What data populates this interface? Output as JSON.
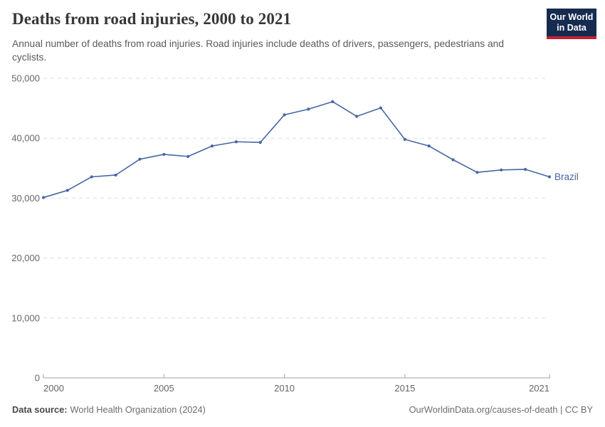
{
  "colors": {
    "brand_navy": "#172b50",
    "brand_red": "#c5212f",
    "series_blue": "#4666a4",
    "axis_text": "#666666",
    "grid": "#dedede",
    "axis_line": "#a3a3a3"
  },
  "logo": {
    "line1": "Our World",
    "line2": "in Data"
  },
  "chart_data": {
    "type": "line",
    "title": "Deaths from road injuries, 2000 to 2021",
    "subtitle": "Annual number of deaths from road injuries. Road injuries include deaths of drivers, passengers, pedestrians and cyclists.",
    "x": [
      2000,
      2001,
      2002,
      2003,
      2004,
      2005,
      2006,
      2007,
      2008,
      2009,
      2010,
      2011,
      2012,
      2013,
      2014,
      2015,
      2016,
      2017,
      2018,
      2019,
      2020,
      2021
    ],
    "series": [
      {
        "name": "Brazil",
        "color": "#4666a4",
        "values": [
          30100,
          31300,
          33550,
          33850,
          36500,
          37300,
          36950,
          38700,
          39400,
          39300,
          43900,
          44850,
          46100,
          43650,
          45050,
          39800,
          38700,
          36400,
          34300,
          34700,
          34800,
          33550
        ]
      }
    ],
    "xlim": [
      2000,
      2021
    ],
    "ylim": [
      0,
      50000
    ],
    "x_ticks": [
      2000,
      2005,
      2010,
      2015,
      2021
    ],
    "y_ticks": [
      0,
      10000,
      20000,
      30000,
      40000,
      50000
    ],
    "grid": "horizontal-dashed",
    "legend": "end-of-line-label"
  },
  "footer": {
    "source_label": "Data source:",
    "source_text": "World Health Organization (2024)",
    "credit": "OurWorldinData.org/causes-of-death | CC BY"
  }
}
